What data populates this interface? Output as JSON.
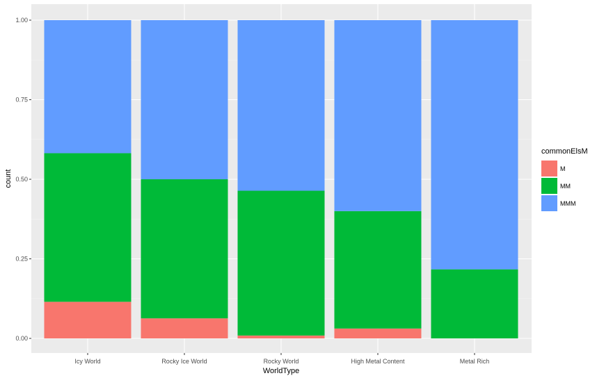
{
  "chart_data": {
    "type": "bar",
    "stacked": true,
    "position": "fill",
    "categories": [
      "Icy World",
      "Rocky Ice World",
      "Rocky World",
      "High Metal Content",
      "Metal Rich"
    ],
    "series": [
      {
        "name": "M",
        "color": "#F8766D",
        "values": [
          0.115,
          0.063,
          0.009,
          0.031,
          0.0
        ]
      },
      {
        "name": "MM",
        "color": "#00BA38",
        "values": [
          0.467,
          0.437,
          0.455,
          0.369,
          0.217
        ]
      },
      {
        "name": "MMM",
        "color": "#619CFF",
        "values": [
          0.418,
          0.5,
          0.536,
          0.6,
          0.783
        ]
      }
    ],
    "xlabel": "WorldType",
    "ylabel": "count",
    "ylim": [
      0,
      1
    ],
    "yticks": [
      "0.00",
      "0.25",
      "0.50",
      "0.75",
      "1.00"
    ],
    "ytick_values": [
      0,
      0.25,
      0.5,
      0.75,
      1.0
    ],
    "legend": {
      "title": "commonElsM",
      "placement": "right"
    },
    "grid": true,
    "panel_background": "#EBEBEB",
    "grid_color": "#FFFFFF"
  }
}
